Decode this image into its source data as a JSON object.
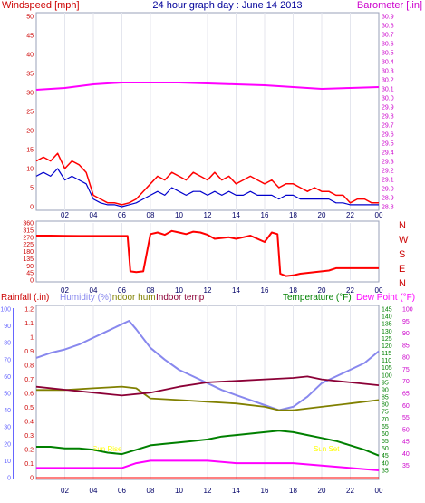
{
  "page": {
    "title": "24 hour graph day : June 14 2013"
  },
  "panels": {
    "wind": {
      "left_label": "Windspeed [mph]",
      "right_label": "Barometer [.in]"
    },
    "dir": {
      "compass": [
        "N",
        "W",
        "S",
        "E",
        "N"
      ]
    },
    "bottom": {
      "labels": {
        "rainfall": "Rainfall (.in)",
        "humidity": "Humidity (%)",
        "indoor_hum": "Indoor hum",
        "indoor_temp": "Indoor temp",
        "temperature": "Temperature (°F)",
        "dew_point": "Dew Point (°F)"
      },
      "annotations": {
        "sunrise": "Sun Rise",
        "sunset": "Sun Set"
      }
    }
  },
  "colors": {
    "background": "#ffffff",
    "frame": "#9aa0b8",
    "wind_gust": "#ff0000",
    "wind_avg": "#0000cc",
    "barometer": "#ff00ff",
    "direction": "#ff0000",
    "humidity": "#8888ee",
    "indoor_hum": "#808000",
    "indoor_temp": "#8b0036",
    "temperature": "#008000",
    "dew_point": "#ff00ff",
    "rainfall": "#ff0000",
    "rain_axis": "#6666ff",
    "annotation": "#ffff00",
    "x_labels": "#000066"
  },
  "chart_data": [
    {
      "type": "line",
      "x_tick_labels": [
        "02",
        "04",
        "06",
        "08",
        "10",
        "12",
        "14",
        "16",
        "18",
        "20",
        "22",
        "00"
      ],
      "x_unit": "hours",
      "xlim": [
        0,
        24
      ],
      "ylim": [
        0,
        50
      ],
      "y_ticks": [
        0,
        5,
        10,
        15,
        20,
        25,
        30,
        35,
        40,
        45,
        50
      ],
      "y2lim": [
        28.8,
        30.9
      ],
      "y2_ticks": [
        28.8,
        28.9,
        29.0,
        29.1,
        29.2,
        29.3,
        29.4,
        29.5,
        29.6,
        29.7,
        29.8,
        29.9,
        30.0,
        30.1,
        30.2,
        30.3,
        30.4,
        30.5,
        30.6,
        30.7,
        30.8,
        30.9
      ],
      "series": [
        {
          "axis": "left",
          "x": [
            0.0,
            0.5,
            1.0,
            1.5,
            2.0,
            2.5,
            3.0,
            3.5,
            4.0,
            4.5,
            5.0,
            5.5,
            6.0,
            6.5,
            7.0,
            7.5,
            8.0,
            8.5,
            9.0,
            9.5,
            10.0,
            10.5,
            11.0,
            11.5,
            12.0,
            12.5,
            13.0,
            13.5,
            14.0,
            14.5,
            15.0,
            15.5,
            16.0,
            16.5,
            17.0,
            17.5,
            18.0,
            18.5,
            19.0,
            19.5,
            20.0,
            20.5,
            21.0,
            21.5,
            22.0,
            22.5,
            23.0,
            23.5,
            24.0
          ],
          "values": [
            12,
            13,
            12,
            14,
            10,
            12,
            11,
            9,
            3,
            2,
            1,
            1,
            0.5,
            1,
            2,
            4,
            6,
            8,
            7,
            9,
            8,
            7,
            9,
            8,
            7,
            9,
            7,
            8,
            6,
            7,
            8,
            7,
            6,
            7,
            5,
            6,
            6,
            5,
            4,
            5,
            4,
            4,
            3,
            3,
            1,
            2,
            2,
            1,
            1
          ]
        },
        {
          "axis": "left",
          "x": [
            0.0,
            0.5,
            1.0,
            1.5,
            2.0,
            2.5,
            3.0,
            3.5,
            4.0,
            4.5,
            5.0,
            5.5,
            6.0,
            6.5,
            7.0,
            7.5,
            8.0,
            8.5,
            9.0,
            9.5,
            10.0,
            10.5,
            11.0,
            11.5,
            12.0,
            12.5,
            13.0,
            13.5,
            14.0,
            14.5,
            15.0,
            15.5,
            16.0,
            16.5,
            17.0,
            17.5,
            18.0,
            18.5,
            19.0,
            19.5,
            20.0,
            20.5,
            21.0,
            21.5,
            22.0,
            22.5,
            23.0,
            23.5,
            24.0
          ],
          "values": [
            8,
            9,
            8,
            10,
            7,
            8,
            7,
            6,
            2,
            1,
            0.5,
            0.5,
            0,
            0.5,
            1,
            2,
            3,
            4,
            3,
            5,
            4,
            3,
            4,
            4,
            3,
            4,
            3,
            4,
            3,
            3,
            4,
            3,
            3,
            3,
            2,
            3,
            3,
            2,
            2,
            2,
            2,
            2,
            1,
            1,
            0.5,
            0.5,
            0.5,
            0.5,
            0.5
          ]
        },
        {
          "axis": "right",
          "x": [
            0,
            2,
            4,
            6,
            8,
            10,
            12,
            14,
            16,
            18,
            20,
            22,
            24
          ],
          "values": [
            30.09,
            30.11,
            30.15,
            30.17,
            30.17,
            30.17,
            30.16,
            30.15,
            30.14,
            30.12,
            30.1,
            30.11,
            30.12
          ]
        }
      ]
    },
    {
      "type": "line",
      "x_tick_labels": [
        "02",
        "04",
        "06",
        "08",
        "10",
        "12",
        "14",
        "16",
        "18",
        "20",
        "22",
        "00"
      ],
      "xlim": [
        0,
        24
      ],
      "ylim": [
        0,
        360
      ],
      "y_ticks": [
        0,
        45,
        90,
        135,
        180,
        225,
        270,
        315,
        360
      ],
      "series": [
        {
          "x": [
            0,
            1,
            2,
            3,
            4,
            5,
            6,
            6.4,
            6.6,
            7,
            7.5,
            8,
            8.5,
            9,
            9.5,
            10,
            10.5,
            11,
            11.5,
            12,
            12.5,
            13,
            13.5,
            14,
            14.5,
            15,
            15.5,
            16,
            16.5,
            16.9,
            17.1,
            17.5,
            18,
            18.5,
            19,
            19.5,
            20,
            20.5,
            21,
            22,
            23,
            24
          ],
          "values": [
            280,
            280,
            279,
            278,
            278,
            278,
            278,
            278,
            55,
            50,
            55,
            290,
            300,
            285,
            310,
            300,
            290,
            305,
            300,
            285,
            260,
            265,
            270,
            260,
            270,
            280,
            260,
            240,
            300,
            290,
            40,
            25,
            30,
            40,
            45,
            50,
            55,
            60,
            75,
            75,
            75,
            75
          ]
        }
      ]
    },
    {
      "type": "line",
      "x_tick_labels": [
        "02",
        "04",
        "06",
        "08",
        "10",
        "12",
        "14",
        "16",
        "18",
        "20",
        "22",
        "00"
      ],
      "xlim": [
        0,
        24
      ],
      "ylim_humidity": [
        0,
        100
      ],
      "ylim_rainfall": [
        0,
        1.2
      ],
      "ylim_temperature": [
        30,
        145
      ],
      "ylim_dewpoint": [
        30,
        100
      ],
      "humidity_ticks": [
        0,
        10,
        20,
        30,
        40,
        50,
        60,
        70,
        80,
        90,
        100
      ],
      "rainfall_ticks": [
        0,
        0.1,
        0.2,
        0.3,
        0.4,
        0.5,
        0.6,
        0.7,
        0.8,
        0.9,
        1.0,
        1.1,
        1.2
      ],
      "temperature_ticks": [
        35,
        40,
        45,
        50,
        55,
        60,
        65,
        70,
        75,
        80,
        85,
        90,
        95,
        100,
        105,
        110,
        115,
        120,
        125,
        130,
        135,
        140,
        145
      ],
      "dewpoint_ticks": [
        35,
        40,
        45,
        50,
        55,
        60,
        65,
        70,
        75,
        80,
        85,
        90,
        95,
        100
      ],
      "series": [
        {
          "axis": "humidity",
          "x": [
            0,
            1,
            2,
            3,
            4,
            5,
            6,
            6.5,
            7,
            8,
            9,
            10,
            11,
            12,
            13,
            14,
            15,
            16,
            17,
            18,
            19,
            20,
            21,
            22,
            23,
            24
          ],
          "values": [
            71,
            74,
            76,
            79,
            83,
            87,
            91,
            93,
            88,
            77,
            70,
            64,
            60,
            56,
            52,
            49,
            46,
            43,
            40,
            42,
            48,
            56,
            60,
            64,
            68,
            75
          ]
        },
        {
          "axis": "humidity",
          "x": [
            0,
            2,
            4,
            6,
            7,
            8,
            10,
            12,
            14,
            16,
            17,
            18,
            20,
            22,
            24
          ],
          "values": [
            52,
            52,
            53,
            54,
            53,
            47,
            46,
            45,
            44,
            42,
            40,
            40,
            42,
            44,
            46
          ]
        },
        {
          "axis": "temperature",
          "x": [
            0,
            2,
            4,
            6,
            8,
            10,
            12,
            14,
            16,
            18,
            19,
            20,
            22,
            24
          ],
          "values": [
            92,
            90,
            88,
            86,
            88,
            92,
            95,
            96,
            97,
            98,
            99,
            97,
            95,
            93
          ]
        },
        {
          "axis": "temperature",
          "x": [
            0,
            1,
            2,
            3,
            4,
            5,
            6,
            7,
            8,
            9,
            10,
            11,
            12,
            13,
            14,
            15,
            16,
            17,
            18,
            19,
            20,
            21,
            22,
            23,
            24
          ],
          "values": [
            51,
            51,
            50,
            50,
            49,
            47,
            46,
            49,
            52,
            53,
            54,
            55,
            56,
            58,
            59,
            60,
            61,
            62,
            61,
            59,
            57,
            55,
            52,
            49,
            45
          ]
        },
        {
          "axis": "dewpoint",
          "x": [
            0,
            2,
            4,
            6,
            7,
            8,
            10,
            12,
            14,
            16,
            18,
            20,
            22,
            24
          ],
          "values": [
            34,
            34,
            34,
            34,
            36,
            37,
            37,
            37,
            36,
            36,
            36,
            35,
            34,
            33
          ]
        },
        {
          "axis": "rainfall",
          "x": [
            0,
            24
          ],
          "values": [
            0,
            0
          ]
        }
      ]
    }
  ]
}
